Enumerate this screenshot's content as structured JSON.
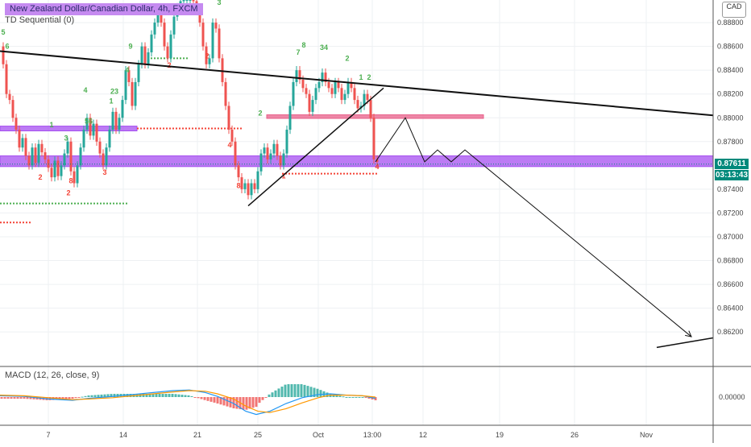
{
  "header": {
    "title": "New Zealand Dollar/Canadian Dollar, 4h, FXCM",
    "indicator": "TD Sequential (0)",
    "macd_label": "MACD (12, 26, close, 9)",
    "currency_badge": "CAD",
    "last_price": "0.87611",
    "countdown": "03:13:43"
  },
  "colors": {
    "up": "#26a69a",
    "down": "#ef5350",
    "zone_purple": "#a64ff0",
    "zone_pink": "#e8608a",
    "macd_line": "#2196f3",
    "signal_line": "#ff9800",
    "price_tag": "#00897b",
    "td_buy": "#4caf50",
    "td_sell": "#f44336"
  },
  "chart_data": {
    "type": "candlestick",
    "y_ticks": [
      "0.88800",
      "0.88600",
      "0.88400",
      "0.88200",
      "0.88000",
      "0.87800",
      "0.87600",
      "0.87400",
      "0.87200",
      "0.87000",
      "0.86800",
      "0.86600",
      "0.86400",
      "0.86200"
    ],
    "macd_ticks": [
      "0.00000"
    ],
    "x_ticks": [
      "7",
      "14",
      "21",
      "25",
      "Oct",
      "13:00",
      "12",
      "19",
      "26",
      "Nov"
    ],
    "ylim": [
      0.8591,
      0.8899
    ],
    "price_series": [
      [
        0,
        0.886
      ],
      [
        4,
        0.8845
      ],
      [
        8,
        0.882
      ],
      [
        12,
        0.8815
      ],
      [
        16,
        0.88
      ],
      [
        20,
        0.879
      ],
      [
        24,
        0.8775
      ],
      [
        28,
        0.8783
      ],
      [
        32,
        0.8768
      ],
      [
        36,
        0.876
      ],
      [
        40,
        0.8775
      ],
      [
        44,
        0.8762
      ],
      [
        48,
        0.8778
      ],
      [
        52,
        0.8771
      ],
      [
        56,
        0.8765
      ],
      [
        60,
        0.8758
      ],
      [
        64,
        0.875
      ],
      [
        68,
        0.8764
      ],
      [
        72,
        0.8751
      ],
      [
        76,
        0.876
      ],
      [
        80,
        0.877
      ],
      [
        84,
        0.878
      ],
      [
        88,
        0.8755
      ],
      [
        92,
        0.8745
      ],
      [
        96,
        0.876
      ],
      [
        100,
        0.8775
      ],
      [
        104,
        0.879
      ],
      [
        108,
        0.88
      ],
      [
        112,
        0.8785
      ],
      [
        116,
        0.8795
      ],
      [
        120,
        0.878
      ],
      [
        124,
        0.877
      ],
      [
        128,
        0.876
      ],
      [
        132,
        0.8775
      ],
      [
        136,
        0.879
      ],
      [
        140,
        0.8805
      ],
      [
        144,
        0.879
      ],
      [
        148,
        0.88
      ],
      [
        152,
        0.8815
      ],
      [
        156,
        0.884
      ],
      [
        160,
        0.883
      ],
      [
        164,
        0.881
      ],
      [
        168,
        0.883
      ],
      [
        172,
        0.8845
      ],
      [
        176,
        0.886
      ],
      [
        180,
        0.8845
      ],
      [
        184,
        0.8855
      ],
      [
        188,
        0.887
      ],
      [
        192,
        0.888
      ],
      [
        196,
        0.889
      ],
      [
        200,
        0.888
      ],
      [
        204,
        0.886
      ],
      [
        208,
        0.885
      ],
      [
        212,
        0.887
      ],
      [
        216,
        0.8885
      ],
      [
        220,
        0.8893
      ],
      [
        224,
        0.8898
      ],
      [
        228,
        0.8899
      ],
      [
        232,
        0.8899
      ],
      [
        236,
        0.8899
      ],
      [
        240,
        0.8898
      ],
      [
        244,
        0.8892
      ],
      [
        248,
        0.888
      ],
      [
        252,
        0.886
      ],
      [
        256,
        0.8845
      ],
      [
        260,
        0.885
      ],
      [
        264,
        0.888
      ],
      [
        268,
        0.8875
      ],
      [
        272,
        0.885
      ],
      [
        276,
        0.883
      ],
      [
        280,
        0.881
      ],
      [
        284,
        0.879
      ],
      [
        288,
        0.878
      ],
      [
        292,
        0.876
      ],
      [
        296,
        0.875
      ],
      [
        300,
        0.874
      ],
      [
        304,
        0.8745
      ],
      [
        308,
        0.8735
      ],
      [
        312,
        0.8745
      ],
      [
        316,
        0.874
      ],
      [
        320,
        0.8755
      ],
      [
        324,
        0.877
      ],
      [
        328,
        0.8775
      ],
      [
        332,
        0.8765
      ],
      [
        336,
        0.877
      ],
      [
        340,
        0.8778
      ],
      [
        344,
        0.8768
      ],
      [
        348,
        0.876
      ],
      [
        352,
        0.877
      ],
      [
        356,
        0.879
      ],
      [
        360,
        0.881
      ],
      [
        364,
        0.883
      ],
      [
        368,
        0.884
      ],
      [
        372,
        0.8832
      ],
      [
        376,
        0.8825
      ],
      [
        380,
        0.882
      ],
      [
        384,
        0.8805
      ],
      [
        388,
        0.8815
      ],
      [
        392,
        0.8825
      ],
      [
        396,
        0.883
      ],
      [
        400,
        0.8838
      ],
      [
        404,
        0.883
      ],
      [
        408,
        0.8825
      ],
      [
        412,
        0.882
      ],
      [
        416,
        0.883
      ],
      [
        420,
        0.8825
      ],
      [
        424,
        0.8815
      ],
      [
        428,
        0.882
      ],
      [
        432,
        0.883
      ],
      [
        436,
        0.8825
      ],
      [
        440,
        0.8815
      ],
      [
        444,
        0.8808
      ],
      [
        448,
        0.881
      ],
      [
        452,
        0.882
      ],
      [
        456,
        0.8815
      ],
      [
        460,
        0.88
      ],
      [
        464,
        0.8765
      ],
      [
        468,
        0.8763
      ]
    ],
    "zones": [
      {
        "name": "purple-support",
        "y_low": 0.8759,
        "y_high": 0.8768,
        "x_start": 0,
        "x_end": 885
      },
      {
        "name": "purple-left",
        "y_low": 0.8789,
        "y_high": 0.8793,
        "x_start": 0,
        "x_end": 170
      },
      {
        "name": "pink-resistance",
        "y_low": 0.87995,
        "y_high": 0.88025,
        "x_start": 331,
        "x_end": 600
      }
    ],
    "trendlines": [
      {
        "name": "downtrend-line",
        "p1": [
          0,
          0.8856
        ],
        "p2": [
          885,
          0.8802
        ]
      },
      {
        "name": "rising-wedge-line",
        "p1": [
          308,
          0.8726
        ],
        "p2": [
          476,
          0.8825
        ]
      },
      {
        "name": "projection-path",
        "points": [
          [
            466,
            0.8763
          ],
          [
            503,
            0.88
          ],
          [
            527,
            0.8763
          ],
          [
            543,
            0.8773
          ],
          [
            560,
            0.8763
          ],
          [
            577,
            0.8773
          ],
          [
            858,
            0.8616
          ]
        ]
      },
      {
        "name": "bottom-line",
        "p1": [
          815,
          0.8607
        ],
        "p2": [
          885,
          0.8615
        ]
      }
    ],
    "level_dots": [
      {
        "color": "#4caf50",
        "y": 0.885,
        "x_start": 175,
        "x_end": 235
      },
      {
        "color": "#4caf50",
        "y": 0.8728,
        "x_start": 0,
        "x_end": 160
      },
      {
        "color": "#f44336",
        "y": 0.8712,
        "x_start": 0,
        "x_end": 40
      },
      {
        "color": "#f44336",
        "y": 0.8791,
        "x_start": 170,
        "x_end": 300
      },
      {
        "color": "#f44336",
        "y": 0.8753,
        "x_start": 350,
        "x_end": 470
      }
    ],
    "td_labels": [
      {
        "text": "5",
        "x": 4,
        "y": 0.887,
        "c": "g"
      },
      {
        "text": "6",
        "x": 9,
        "y": 0.8858,
        "c": "g"
      },
      {
        "text": "2",
        "x": 50,
        "y": 0.8748,
        "c": "r"
      },
      {
        "text": "1",
        "x": 64,
        "y": 0.8792,
        "c": "g"
      },
      {
        "text": "3",
        "x": 82,
        "y": 0.8781,
        "c": "g"
      },
      {
        "text": "8",
        "x": 88,
        "y": 0.8745,
        "c": "r"
      },
      {
        "text": "2",
        "x": 85,
        "y": 0.8735,
        "c": "r"
      },
      {
        "text": "4",
        "x": 106,
        "y": 0.8821,
        "c": "g"
      },
      {
        "text": "56",
        "x": 110,
        "y": 0.8795,
        "c": "g"
      },
      {
        "text": "3",
        "x": 130,
        "y": 0.8752,
        "c": "r"
      },
      {
        "text": "1",
        "x": 138,
        "y": 0.8812,
        "c": "g"
      },
      {
        "text": "23",
        "x": 142,
        "y": 0.882,
        "c": "g"
      },
      {
        "text": "4",
        "x": 158,
        "y": 0.8838,
        "c": "g"
      },
      {
        "text": "9",
        "x": 162,
        "y": 0.8858,
        "c": "g"
      },
      {
        "text": "2",
        "x": 210,
        "y": 0.8842,
        "c": "r"
      },
      {
        "text": "2",
        "x": 257,
        "y": 0.885,
        "c": "r"
      },
      {
        "text": "3",
        "x": 272,
        "y": 0.8895,
        "c": "g"
      },
      {
        "text": "4",
        "x": 285,
        "y": 0.8775,
        "c": "r"
      },
      {
        "text": "8",
        "x": 296,
        "y": 0.8741,
        "c": "r"
      },
      {
        "text": "2",
        "x": 323,
        "y": 0.8802,
        "c": "g"
      },
      {
        "text": "1",
        "x": 352,
        "y": 0.8749,
        "c": "r"
      },
      {
        "text": "8",
        "x": 377,
        "y": 0.8859,
        "c": "g"
      },
      {
        "text": "7",
        "x": 370,
        "y": 0.8853,
        "c": "g"
      },
      {
        "text": "34",
        "x": 402,
        "y": 0.8857,
        "c": "g"
      },
      {
        "text": "2",
        "x": 431,
        "y": 0.8848,
        "c": "g"
      },
      {
        "text": "1",
        "x": 448,
        "y": 0.8832,
        "c": "g"
      },
      {
        "text": "2",
        "x": 458,
        "y": 0.8832,
        "c": "g"
      },
      {
        "text": "4",
        "x": 468,
        "y": 0.8757,
        "c": "r"
      }
    ],
    "macd": {
      "zero": 0.0,
      "macd_line": [
        [
          0,
          0.2
        ],
        [
          30,
          0.1
        ],
        [
          60,
          -0.3
        ],
        [
          90,
          -0.5
        ],
        [
          110,
          -0.2
        ],
        [
          140,
          0.1
        ],
        [
          165,
          0.4
        ],
        [
          190,
          0.7
        ],
        [
          215,
          1.0
        ],
        [
          235,
          1.1
        ],
        [
          255,
          0.7
        ],
        [
          270,
          0.1
        ],
        [
          290,
          -1.0
        ],
        [
          305,
          -2.2
        ],
        [
          318,
          -2.7
        ],
        [
          335,
          -2.2
        ],
        [
          355,
          -1.0
        ],
        [
          375,
          -0.1
        ],
        [
          395,
          0.4
        ],
        [
          410,
          0.5
        ],
        [
          430,
          0.3
        ],
        [
          450,
          0.2
        ],
        [
          466,
          -0.2
        ]
      ],
      "signal_line": [
        [
          0,
          0.3
        ],
        [
          30,
          0.2
        ],
        [
          60,
          -0.1
        ],
        [
          90,
          -0.4
        ],
        [
          110,
          -0.3
        ],
        [
          140,
          -0.1
        ],
        [
          165,
          0.2
        ],
        [
          190,
          0.5
        ],
        [
          215,
          0.8
        ],
        [
          235,
          1.0
        ],
        [
          255,
          0.9
        ],
        [
          270,
          0.5
        ],
        [
          290,
          -0.3
        ],
        [
          305,
          -1.4
        ],
        [
          320,
          -2.2
        ],
        [
          335,
          -2.4
        ],
        [
          355,
          -1.8
        ],
        [
          375,
          -0.9
        ],
        [
          395,
          -0.1
        ],
        [
          410,
          0.3
        ],
        [
          430,
          0.3
        ],
        [
          450,
          0.2
        ],
        [
          466,
          0.0
        ]
      ]
    }
  }
}
